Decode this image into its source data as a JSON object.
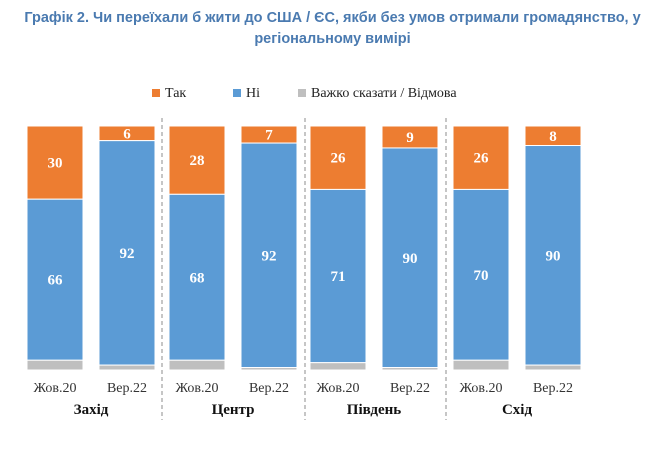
{
  "chart_data": {
    "type": "bar",
    "stacked": true,
    "title": "Графік 2. Чи переїхали б жити до США / ЄС, якби без умов отримали громадянство, у регіональному вимірі",
    "xlabel": "",
    "ylabel": "",
    "ylim": [
      0,
      100
    ],
    "legend_position": "top",
    "legend": [
      "Так",
      "Ні",
      "Важко сказати / Відмова"
    ],
    "colors": {
      "Так": "#ed7d31",
      "Ні": "#5b9bd5",
      "Важко сказати / Відмова": "#bfbfbf"
    },
    "groups": [
      {
        "region": "Захід",
        "bars": [
          {
            "period": "Жов.20",
            "yes": 30,
            "no": 66,
            "hard": 4
          },
          {
            "period": "Вер.22",
            "yes": 6,
            "no": 92,
            "hard": 2
          }
        ]
      },
      {
        "region": "Центр",
        "bars": [
          {
            "period": "Жов.20",
            "yes": 28,
            "no": 68,
            "hard": 4
          },
          {
            "period": "Вер.22",
            "yes": 7,
            "no": 92,
            "hard": 1
          }
        ]
      },
      {
        "region": "Південь",
        "bars": [
          {
            "period": "Жов.20",
            "yes": 26,
            "no": 71,
            "hard": 3
          },
          {
            "period": "Вер.22",
            "yes": 9,
            "no": 90,
            "hard": 1
          }
        ]
      },
      {
        "region": "Схід",
        "bars": [
          {
            "period": "Жов.20",
            "yes": 26,
            "no": 70,
            "hard": 4
          },
          {
            "period": "Вер.22",
            "yes": 8,
            "no": 90,
            "hard": 2
          }
        ]
      }
    ]
  }
}
